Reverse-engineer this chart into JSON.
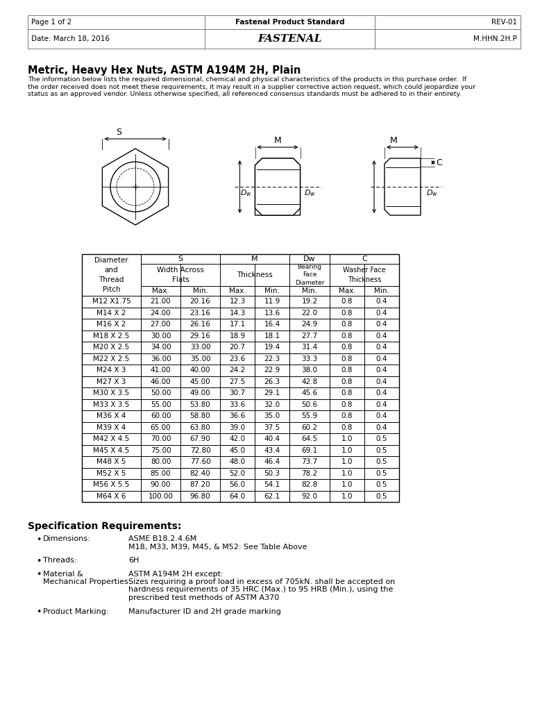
{
  "page_info_left": "Page 1 of 2",
  "page_info_center": "Fastenal Product Standard",
  "page_info_right": "REV-01",
  "date_left": "Date: March 18, 2016",
  "date_right": "M.HHN.2H.P",
  "title": "Metric, Heavy Hex Nuts, ASTM A194M 2H, Plain",
  "description": "The information below lists the required dimensional, chemical and physical characteristics of the products in this purchase order.  If\nthe order received does not meet these requirements, it may result in a supplier corrective action request, which could jeopardize your\nstatus as an approved vendor. Unless otherwise specified, all referenced consensus standards must be adhered to in their entirety.",
  "table_data": [
    [
      "M12 X1.75",
      "21.00",
      "20.16",
      "12.3",
      "11.9",
      "19.2",
      "0.8",
      "0.4"
    ],
    [
      "M14 X 2",
      "24.00",
      "23.16",
      "14.3",
      "13.6",
      "22.0",
      "0.8",
      "0.4"
    ],
    [
      "M16 X 2",
      "27.00",
      "26.16",
      "17.1",
      "16.4",
      "24.9",
      "0.8",
      "0.4"
    ],
    [
      "M18 X 2.5",
      "30.00",
      "29.16",
      "18.9",
      "18.1",
      "27.7",
      "0.8",
      "0.4"
    ],
    [
      "M20 X 2.5",
      "34.00",
      "33.00",
      "20.7",
      "19.4",
      "31.4",
      "0.8",
      "0.4"
    ],
    [
      "M22 X 2.5",
      "36.00",
      "35.00",
      "23.6",
      "22.3",
      "33.3",
      "0.8",
      "0.4"
    ],
    [
      "M24 X 3",
      "41.00",
      "40.00",
      "24.2",
      "22.9",
      "38.0",
      "0.8",
      "0.4"
    ],
    [
      "M27 X 3",
      "46.00",
      "45.00",
      "27.5",
      "26.3",
      "42.8",
      "0.8",
      "0.4"
    ],
    [
      "M30 X 3.5",
      "50.00",
      "49.00",
      "30.7",
      "29.1",
      "45.6",
      "0.8",
      "0.4"
    ],
    [
      "M33 X 3.5",
      "55.00",
      "53.80",
      "33.6",
      "32.0",
      "50.6",
      "0.8",
      "0.4"
    ],
    [
      "M36 X 4",
      "60.00",
      "58.80",
      "36.6",
      "35.0",
      "55.9",
      "0.8",
      "0.4"
    ],
    [
      "M39 X 4",
      "65.00",
      "63.80",
      "39.0",
      "37.5",
      "60.2",
      "0.8",
      "0.4"
    ],
    [
      "M42 X 4.5",
      "70.00",
      "67.90",
      "42.0",
      "40.4",
      "64.5",
      "1.0",
      "0.5"
    ],
    [
      "M45 X 4.5",
      "75.00",
      "72.80",
      "45.0",
      "43.4",
      "69.1",
      "1.0",
      "0.5"
    ],
    [
      "M48 X 5",
      "80.00",
      "77.60",
      "48.0",
      "46.4",
      "73.7",
      "1.0",
      "0.5"
    ],
    [
      "M52 X 5",
      "85.00",
      "82.40",
      "52.0",
      "50.3",
      "78.2",
      "1.0",
      "0.5"
    ],
    [
      "M56 X 5.5",
      "90.00",
      "87.20",
      "56.0",
      "54.1",
      "82.8",
      "1.0",
      "0.5"
    ],
    [
      "M64 X 6",
      "100.00",
      "96.80",
      "64.0",
      "62.1",
      "92.0",
      "1.0",
      "0.5"
    ]
  ],
  "spec_title": "Specification Requirements:",
  "spec_items": [
    {
      "label": "Dimensions:",
      "value": "ASME B18.2.4.6M\nM18, M33, M39, M45, & M52: See Table Above"
    },
    {
      "label": "Threads:",
      "value": "6H"
    },
    {
      "label": "Material &\nMechanical Properties:",
      "value": "ASTM A194M 2H except:\nSizes requiring a proof load in excess of 705kN. shall be accepted on\nhardness requirements of 35 HRC (Max.) to 95 HRB (Min.), using the\nprescribed test methods of ASTM A370"
    },
    {
      "label": "Product Marking:",
      "value": "Manufacturer ID and 2H grade marking"
    }
  ],
  "bg_color": "#ffffff"
}
